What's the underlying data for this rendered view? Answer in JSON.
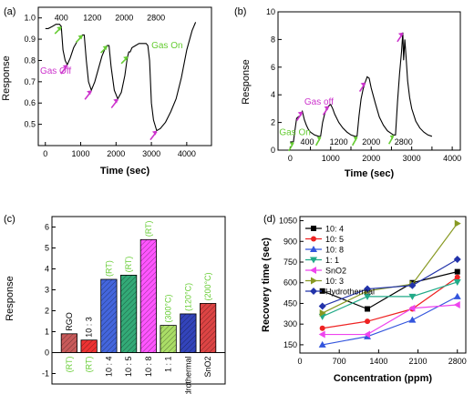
{
  "colors": {
    "magenta": "#cc33cc",
    "green": "#66cc33",
    "axis": "#000000",
    "hydro_bar": "#3344bb"
  },
  "chart_data": [
    {
      "panel": "(a)",
      "type": "line",
      "xlabel": "Time (sec)",
      "ylabel": "Response",
      "xlim": [
        -200,
        4700
      ],
      "ylim": [
        0.4,
        1.05
      ],
      "xticks": [
        0,
        1000,
        2000,
        3000,
        4000
      ],
      "yticks": [
        0.5,
        0.6,
        0.7,
        0.8,
        0.9,
        1.0
      ],
      "labels": [
        "400",
        "1200",
        "2000",
        "2800"
      ],
      "legend": [
        "Gas On",
        "Gas Off"
      ],
      "series": [
        {
          "x": [
            0,
            80,
            200,
            300,
            400,
            450,
            500,
            560,
            620,
            700,
            800,
            900,
            1000,
            1050,
            1100,
            1160,
            1220,
            1300,
            1400,
            1500,
            1600,
            1700,
            1750,
            1800,
            1860,
            1950,
            2050,
            2150,
            2250,
            2300,
            2330,
            2360,
            2400,
            2450,
            2550,
            2650,
            2750,
            2850,
            2900,
            2950,
            3000,
            3060,
            3150,
            3250,
            3400,
            3550,
            3700,
            3850,
            4000,
            4150,
            4250
          ],
          "y": [
            0.95,
            0.95,
            0.96,
            0.97,
            0.97,
            0.96,
            0.85,
            0.8,
            0.78,
            0.81,
            0.86,
            0.89,
            0.91,
            0.92,
            0.92,
            0.8,
            0.7,
            0.66,
            0.7,
            0.76,
            0.82,
            0.86,
            0.87,
            0.87,
            0.77,
            0.66,
            0.62,
            0.65,
            0.73,
            0.79,
            0.82,
            0.84,
            0.84,
            0.86,
            0.87,
            0.88,
            0.88,
            0.88,
            0.87,
            0.8,
            0.6,
            0.52,
            0.47,
            0.48,
            0.51,
            0.56,
            0.62,
            0.72,
            0.85,
            0.94,
            0.98
          ]
        }
      ]
    },
    {
      "panel": "(b)",
      "type": "line",
      "xlabel": "Time (sec)",
      "ylabel": "Response",
      "xlim": [
        -300,
        4200
      ],
      "ylim": [
        0,
        10
      ],
      "xticks": [
        0,
        500,
        1000,
        1500,
        2000,
        2500,
        3000,
        3500,
        4000
      ],
      "yticks": [
        0,
        2,
        4,
        6,
        8,
        10
      ],
      "labels": [
        "400",
        "1200",
        "2000",
        "2800"
      ],
      "legend": [
        "Gas On",
        "Gas off"
      ],
      "series": [
        {
          "x": [
            0,
            80,
            120,
            160,
            200,
            250,
            300,
            350,
            400,
            450,
            500,
            600,
            700,
            750,
            800,
            850,
            900,
            950,
            1000,
            1050,
            1100,
            1200,
            1300,
            1400,
            1500,
            1600,
            1650,
            1700,
            1750,
            1800,
            1850,
            1900,
            1950,
            2000,
            2100,
            2200,
            2300,
            2400,
            2500,
            2550,
            2600,
            2650,
            2700,
            2750,
            2780,
            2800,
            2830,
            2860,
            2900,
            2950,
            3000,
            3100,
            3200,
            3300,
            3400,
            3500
          ],
          "y": [
            0.6,
            0.6,
            1.5,
            2.3,
            2.4,
            2.5,
            2.8,
            2.2,
            1.8,
            1.5,
            1.3,
            1.1,
            1.0,
            1.0,
            2.0,
            2.6,
            3.0,
            3.2,
            3.3,
            3.0,
            2.6,
            2.0,
            1.6,
            1.3,
            1.1,
            1.0,
            1.0,
            2.5,
            3.7,
            4.4,
            4.9,
            5.3,
            5.2,
            4.5,
            3.4,
            2.4,
            1.8,
            1.4,
            1.2,
            1.1,
            1.1,
            3.5,
            5.5,
            7.2,
            8.5,
            6.5,
            8.0,
            6.8,
            5.0,
            3.8,
            3.0,
            2.1,
            1.6,
            1.3,
            1.1,
            1.0
          ]
        }
      ]
    },
    {
      "panel": "(c)",
      "type": "bar",
      "ylabel": "Response",
      "ylim": [
        -1.5,
        6.5
      ],
      "yticks": [
        -1,
        0,
        1,
        2,
        3,
        4,
        5,
        6
      ],
      "categories": [
        "RGO",
        "10 : 3",
        "10 : 4",
        "10 : 5",
        "10 : 8",
        "1 : 1",
        "Hydrothermal",
        "SnO2"
      ],
      "values": [
        0.9,
        0.6,
        3.5,
        3.7,
        5.4,
        1.3,
        1.85,
        2.35
      ],
      "conditions": [
        "(RT)",
        "(RT)",
        "(RT)",
        "(RT)",
        "(RT)",
        "(300°C)",
        "(120°C)",
        "(200°C)"
      ],
      "bar_colors": [
        "#c85a5a",
        "#ee3333",
        "#4466dd",
        "#33aa77",
        "#ff55ff",
        "#aadd66",
        "#3344bb",
        "#dd4444"
      ]
    },
    {
      "panel": "(d)",
      "type": "line",
      "xlabel": "Concentration (ppm)",
      "ylabel": "Recovery time (sec)",
      "xlim": [
        0,
        2950
      ],
      "ylim": [
        90,
        1080
      ],
      "xticks": [
        0,
        700,
        1400,
        2100,
        2800
      ],
      "yticks": [
        150,
        300,
        450,
        600,
        750,
        900,
        1050
      ],
      "categories": [
        400,
        1200,
        2000,
        2800
      ],
      "series": [
        {
          "name": "10: 4",
          "color": "#000000",
          "marker": "square",
          "values": [
            540,
            410,
            600,
            680
          ]
        },
        {
          "name": "10: 5",
          "color": "#ee2222",
          "marker": "circle",
          "values": [
            270,
            320,
            410,
            640
          ]
        },
        {
          "name": "10: 8",
          "color": "#3355dd",
          "marker": "triangle-up",
          "values": [
            150,
            210,
            330,
            500
          ]
        },
        {
          "name": "1: 1",
          "color": "#22aa88",
          "marker": "triangle-down",
          "values": [
            355,
            500,
            500,
            605
          ]
        },
        {
          "name": "SnO2",
          "color": "#ee44ee",
          "marker": "triangle-left",
          "values": [
            225,
            225,
            415,
            440
          ]
        },
        {
          "name": "10: 3",
          "color": "#889922",
          "marker": "triangle-right",
          "values": [
            380,
            540,
            590,
            1030
          ]
        },
        {
          "name": "Hydrothermal",
          "color": "#2233aa",
          "marker": "diamond",
          "values": [
            430,
            555,
            580,
            770
          ]
        }
      ]
    }
  ],
  "panel_labels": [
    "(a)",
    "(b)",
    "(c)",
    "(d)"
  ]
}
